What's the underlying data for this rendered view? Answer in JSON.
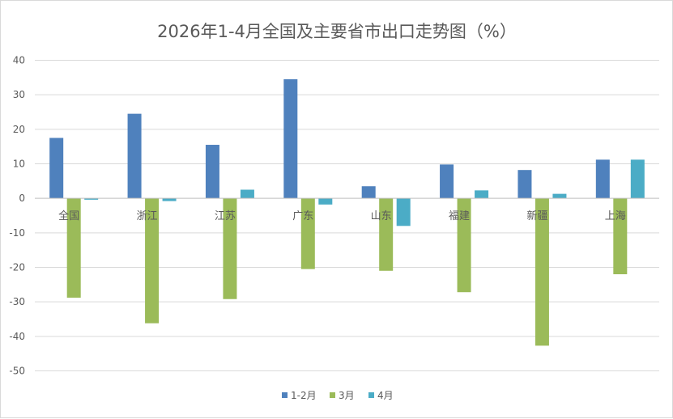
{
  "chart_data": {
    "type": "bar",
    "title": "2026年1-4月全国及主要省市出口走势图（%）",
    "xlabel": "",
    "ylabel": "",
    "categories": [
      "全国",
      "浙江",
      "江苏",
      "广东",
      "山东",
      "福建",
      "新疆",
      "上海"
    ],
    "series": [
      {
        "name": "1-2月",
        "color": "#4f81bd",
        "values": [
          17.5,
          24.5,
          15.5,
          34.5,
          3.5,
          9.8,
          8.2,
          11.2
        ]
      },
      {
        "name": "3月",
        "color": "#9bbb59",
        "values": [
          -28.8,
          -36.2,
          -29.2,
          -20.5,
          -21.0,
          -27.2,
          -42.7,
          -22.0
        ]
      },
      {
        "name": "4月",
        "color": "#4bacc6",
        "values": [
          -0.4,
          -0.8,
          2.5,
          -1.8,
          -8.0,
          2.3,
          1.3,
          11.2
        ]
      }
    ],
    "ylim": [
      -50,
      40
    ],
    "yticks": [
      40,
      30,
      20,
      10,
      0,
      -10,
      -20,
      -30,
      -40,
      -50
    ],
    "grid": true,
    "legend_position": "bottom"
  }
}
